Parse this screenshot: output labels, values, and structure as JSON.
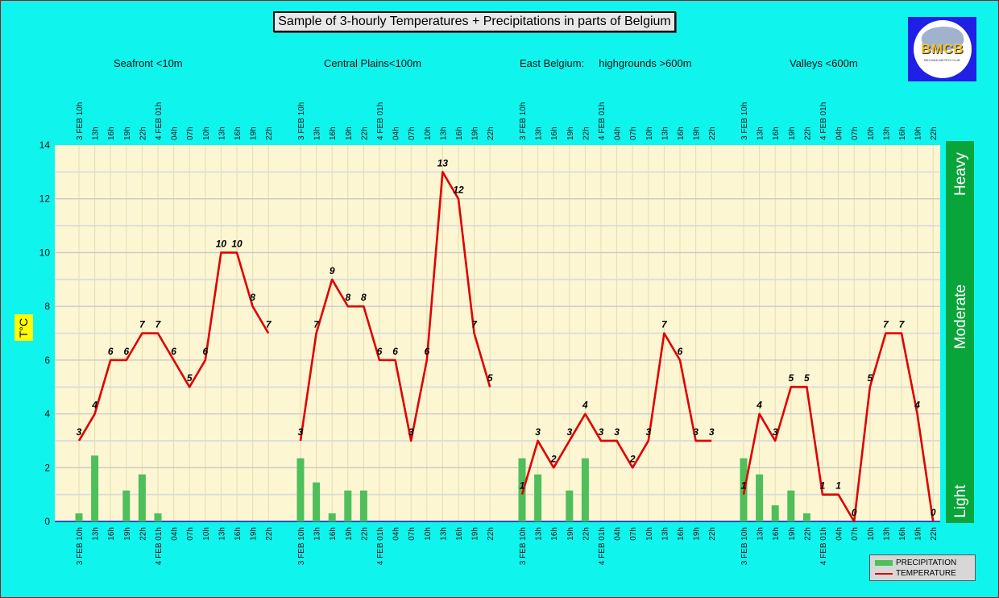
{
  "title": "Sample of 3-hourly Temperatures + Precipitations in parts of Belgium",
  "logo": {
    "text": "BMCB",
    "subtext": "BELGIAN METEO CLUB"
  },
  "regions": [
    "Seafront <10m",
    "Central Plains<100m",
    "East Belgium:     highgrounds >600m",
    "Valleys <600m"
  ],
  "ylabel": "T°C",
  "precip_bands": [
    "Heavy",
    "Moderate",
    "Light"
  ],
  "legend": {
    "precip": "PRECIPITATION",
    "temp": "TEMPERATURE"
  },
  "colors": {
    "background": "#0ff5ee",
    "plot": "#fdf6d3",
    "temperature": "#e00000",
    "precipitation": "#4ebf5a",
    "band": "#0aa53a"
  },
  "chart_data": {
    "type": "bar+line",
    "ylim": [
      0,
      14
    ],
    "yticks": [
      0,
      2,
      4,
      6,
      8,
      10,
      12,
      14
    ],
    "categories": [
      "3 FEB 10h",
      "13h",
      "16h",
      "19h",
      "22h",
      "4 FEB 01h",
      "04h",
      "07h",
      "10h",
      "13h",
      "16h",
      "19h",
      "22h"
    ],
    "series": [
      {
        "name": "Seafront <10m",
        "temperature": [
          3,
          4,
          6,
          6,
          7,
          7,
          6,
          5,
          6,
          10,
          10,
          8,
          7
        ],
        "precipitation": [
          0.3,
          2.45,
          0,
          1.15,
          1.75,
          0.3,
          0,
          0,
          0,
          0,
          0,
          0,
          0
        ]
      },
      {
        "name": "Central Plains<100m",
        "temperature": [
          3,
          7,
          9,
          8,
          8,
          6,
          6,
          3,
          6,
          13,
          12,
          7,
          5
        ],
        "precipitation": [
          2.35,
          1.45,
          0.3,
          1.15,
          1.15,
          0,
          0,
          0,
          0,
          0,
          0,
          0,
          0
        ]
      },
      {
        "name": "East Belgium: highgrounds >600m",
        "temperature": [
          1,
          3,
          2,
          3,
          4,
          3,
          3,
          2,
          3,
          7,
          6,
          3,
          3
        ],
        "precipitation": [
          2.35,
          1.75,
          0,
          1.15,
          2.35,
          0,
          0,
          0,
          0,
          0,
          0,
          0,
          0
        ]
      },
      {
        "name": "Valleys <600m",
        "temperature": [
          1,
          4,
          3,
          5,
          5,
          1,
          1,
          0,
          5,
          7,
          7,
          4,
          0
        ],
        "precipitation": [
          2.35,
          1.75,
          0.6,
          1.15,
          0.3,
          0,
          0,
          0,
          0,
          0,
          0,
          0,
          0
        ]
      }
    ],
    "legend_entries": [
      "PRECIPITATION",
      "TEMPERATURE"
    ],
    "grid": true,
    "legend_position": "bottom-right"
  }
}
